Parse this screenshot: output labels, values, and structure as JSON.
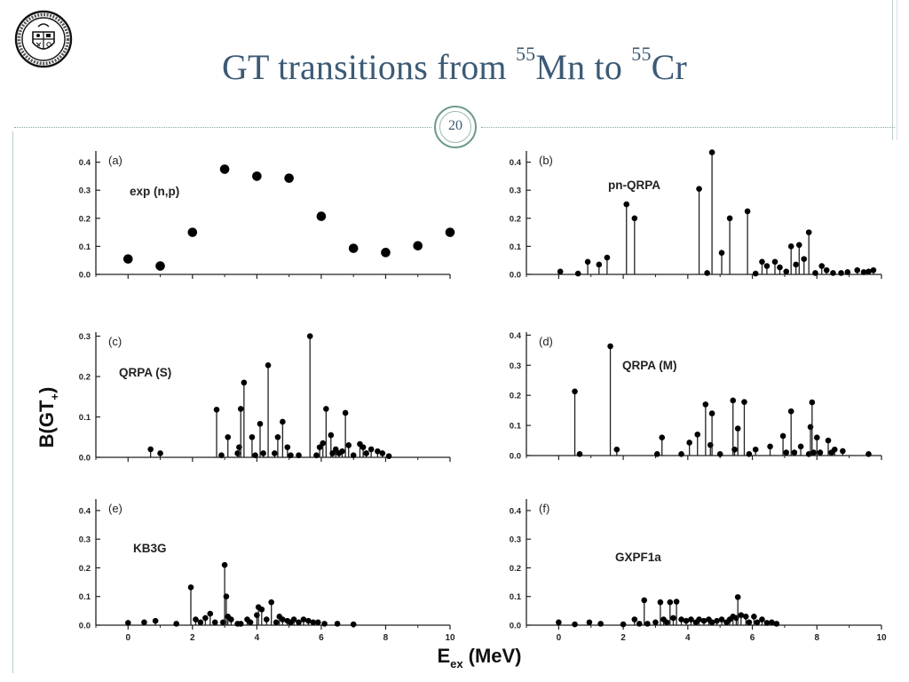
{
  "slide": {
    "title_main": "GT transitions from ",
    "title_sup1": "55",
    "title_mid": "Mn to ",
    "title_sup2": "55",
    "title_end": "Cr",
    "page_number": "20"
  },
  "colors": {
    "title": "#3c5a75",
    "frame": "#6f9a8f",
    "data": "#000000"
  },
  "y_axis_label": "B(GT",
  "y_axis_sub": "+",
  "x_axis_label": "E",
  "x_axis_sub": "ex",
  "x_axis_unit": "(MeV)",
  "chart_data": [
    {
      "type": "scatter",
      "panel": "(a)",
      "name": "exp (n,p)",
      "xlim": [
        -1,
        10
      ],
      "ylim": [
        0,
        0.44
      ],
      "xticks": [
        0,
        2,
        4,
        6,
        8,
        10
      ],
      "yticks": [
        "0.0",
        "0.1",
        "0.2",
        "0.3",
        "0.4"
      ],
      "points": [
        [
          0,
          0.055
        ],
        [
          1,
          0.03
        ],
        [
          2,
          0.15
        ],
        [
          3,
          0.375
        ],
        [
          4,
          0.35
        ],
        [
          5,
          0.343
        ],
        [
          6,
          0.207
        ],
        [
          7,
          0.093
        ],
        [
          8,
          0.078
        ],
        [
          9,
          0.102
        ],
        [
          10,
          0.15
        ]
      ]
    },
    {
      "type": "stem",
      "panel": "(b)",
      "name": "pn-QRPA",
      "xlim": [
        -1,
        10
      ],
      "ylim": [
        0,
        0.44
      ],
      "xticks": [
        0,
        2,
        4,
        6,
        8,
        10
      ],
      "yticks": [
        "0.0",
        "0.1",
        "0.2",
        "0.3",
        "0.4"
      ],
      "points": [
        [
          0.05,
          0.01
        ],
        [
          0.6,
          0.003
        ],
        [
          0.9,
          0.045
        ],
        [
          1.25,
          0.035
        ],
        [
          1.5,
          0.06
        ],
        [
          2.1,
          0.25
        ],
        [
          2.35,
          0.2
        ],
        [
          4.35,
          0.305
        ],
        [
          4.6,
          0.005
        ],
        [
          4.75,
          0.435
        ],
        [
          5.05,
          0.077
        ],
        [
          5.3,
          0.2
        ],
        [
          5.85,
          0.225
        ],
        [
          6.1,
          0.003
        ],
        [
          6.3,
          0.045
        ],
        [
          6.45,
          0.03
        ],
        [
          6.7,
          0.045
        ],
        [
          6.85,
          0.025
        ],
        [
          7.05,
          0.01
        ],
        [
          7.2,
          0.1
        ],
        [
          7.35,
          0.035
        ],
        [
          7.45,
          0.105
        ],
        [
          7.6,
          0.055
        ],
        [
          7.75,
          0.15
        ],
        [
          7.95,
          0.005
        ],
        [
          8.15,
          0.03
        ],
        [
          8.3,
          0.015
        ],
        [
          8.5,
          0.005
        ],
        [
          8.75,
          0.005
        ],
        [
          8.95,
          0.008
        ],
        [
          9.25,
          0.015
        ],
        [
          9.45,
          0.008
        ],
        [
          9.6,
          0.01
        ],
        [
          9.75,
          0.015
        ]
      ]
    },
    {
      "type": "stem",
      "panel": "(c)",
      "name": "QRPA (S)",
      "xlim": [
        -1,
        10
      ],
      "ylim": [
        0,
        0.31
      ],
      "xticks": [
        0,
        2,
        4,
        6,
        8,
        10
      ],
      "yticks": [
        "0.0",
        "0.1",
        "0.2",
        "0.3"
      ],
      "points": [
        [
          0.7,
          0.02
        ],
        [
          1.0,
          0.01
        ],
        [
          2.75,
          0.118
        ],
        [
          2.9,
          0.005
        ],
        [
          3.1,
          0.05
        ],
        [
          3.4,
          0.01
        ],
        [
          3.45,
          0.025
        ],
        [
          3.5,
          0.12
        ],
        [
          3.6,
          0.185
        ],
        [
          3.85,
          0.05
        ],
        [
          3.95,
          0.005
        ],
        [
          4.1,
          0.083
        ],
        [
          4.2,
          0.01
        ],
        [
          4.35,
          0.228
        ],
        [
          4.55,
          0.01
        ],
        [
          4.65,
          0.05
        ],
        [
          4.8,
          0.088
        ],
        [
          4.95,
          0.025
        ],
        [
          5.05,
          0.005
        ],
        [
          5.3,
          0.005
        ],
        [
          5.65,
          0.3
        ],
        [
          5.85,
          0.005
        ],
        [
          5.95,
          0.025
        ],
        [
          6.05,
          0.035
        ],
        [
          6.15,
          0.12
        ],
        [
          6.3,
          0.055
        ],
        [
          6.35,
          0.01
        ],
        [
          6.45,
          0.02
        ],
        [
          6.55,
          0.01
        ],
        [
          6.65,
          0.015
        ],
        [
          6.75,
          0.11
        ],
        [
          6.85,
          0.03
        ],
        [
          7.0,
          0.005
        ],
        [
          7.2,
          0.033
        ],
        [
          7.3,
          0.025
        ],
        [
          7.4,
          0.01
        ],
        [
          7.55,
          0.02
        ],
        [
          7.75,
          0.015
        ],
        [
          7.9,
          0.01
        ],
        [
          8.1,
          0.003
        ]
      ]
    },
    {
      "type": "stem",
      "panel": "(d)",
      "name": "QRPA (M)",
      "xlim": [
        -1,
        10
      ],
      "ylim": [
        0,
        0.41
      ],
      "xticks": [
        0,
        2,
        4,
        6,
        8,
        10
      ],
      "yticks": [
        "0.0",
        "0.1",
        "0.2",
        "0.3",
        "0.4"
      ],
      "points": [
        [
          0.5,
          0.213
        ],
        [
          0.65,
          0.005
        ],
        [
          1.6,
          0.363
        ],
        [
          1.8,
          0.02
        ],
        [
          3.05,
          0.005
        ],
        [
          3.2,
          0.06
        ],
        [
          3.8,
          0.005
        ],
        [
          4.05,
          0.043
        ],
        [
          4.3,
          0.07
        ],
        [
          4.55,
          0.17
        ],
        [
          4.7,
          0.035
        ],
        [
          4.75,
          0.14
        ],
        [
          5.0,
          0.005
        ],
        [
          5.4,
          0.183
        ],
        [
          5.45,
          0.02
        ],
        [
          5.55,
          0.09
        ],
        [
          5.75,
          0.178
        ],
        [
          5.9,
          0.005
        ],
        [
          6.1,
          0.02
        ],
        [
          6.55,
          0.03
        ],
        [
          6.95,
          0.065
        ],
        [
          7.05,
          0.01
        ],
        [
          7.2,
          0.147
        ],
        [
          7.3,
          0.01
        ],
        [
          7.5,
          0.03
        ],
        [
          7.75,
          0.005
        ],
        [
          7.8,
          0.095
        ],
        [
          7.85,
          0.177
        ],
        [
          7.9,
          0.01
        ],
        [
          8.0,
          0.06
        ],
        [
          8.1,
          0.01
        ],
        [
          8.35,
          0.05
        ],
        [
          8.45,
          0.01
        ],
        [
          8.55,
          0.02
        ],
        [
          8.8,
          0.015
        ],
        [
          9.6,
          0.005
        ]
      ]
    },
    {
      "type": "stem",
      "panel": "(e)",
      "name": "KB3G",
      "xlim": [
        -1,
        10
      ],
      "ylim": [
        0,
        0.44
      ],
      "xticks": [
        0,
        2,
        4,
        6,
        8,
        10
      ],
      "yticks": [
        "0.0",
        "0.1",
        "0.2",
        "0.3",
        "0.4"
      ],
      "points": [
        [
          0.0,
          0.008
        ],
        [
          0.5,
          0.01
        ],
        [
          0.85,
          0.015
        ],
        [
          1.5,
          0.005
        ],
        [
          1.95,
          0.132
        ],
        [
          2.1,
          0.02
        ],
        [
          2.25,
          0.01
        ],
        [
          2.4,
          0.025
        ],
        [
          2.55,
          0.04
        ],
        [
          2.7,
          0.01
        ],
        [
          2.95,
          0.01
        ],
        [
          3.0,
          0.21
        ],
        [
          3.05,
          0.1
        ],
        [
          3.1,
          0.03
        ],
        [
          3.2,
          0.02
        ],
        [
          3.4,
          0.005
        ],
        [
          3.5,
          0.005
        ],
        [
          3.7,
          0.02
        ],
        [
          3.8,
          0.01
        ],
        [
          4.0,
          0.035
        ],
        [
          4.05,
          0.063
        ],
        [
          4.15,
          0.055
        ],
        [
          4.3,
          0.02
        ],
        [
          4.45,
          0.08
        ],
        [
          4.6,
          0.01
        ],
        [
          4.7,
          0.03
        ],
        [
          4.8,
          0.02
        ],
        [
          4.95,
          0.015
        ],
        [
          5.05,
          0.01
        ],
        [
          5.15,
          0.02
        ],
        [
          5.3,
          0.01
        ],
        [
          5.45,
          0.02
        ],
        [
          5.6,
          0.015
        ],
        [
          5.75,
          0.01
        ],
        [
          5.9,
          0.01
        ],
        [
          6.1,
          0.005
        ],
        [
          6.5,
          0.005
        ],
        [
          7.0,
          0.003
        ]
      ]
    },
    {
      "type": "stem",
      "panel": "(f)",
      "name": "GXPF1a",
      "xlim": [
        -1,
        10
      ],
      "ylim": [
        0,
        0.44
      ],
      "xticks": [
        0,
        2,
        4,
        6,
        8,
        10
      ],
      "yticks": [
        "0.0",
        "0.1",
        "0.2",
        "0.3",
        "0.4"
      ],
      "points": [
        [
          0.0,
          0.01
        ],
        [
          0.5,
          0.003
        ],
        [
          0.95,
          0.01
        ],
        [
          1.3,
          0.005
        ],
        [
          2.0,
          0.003
        ],
        [
          2.35,
          0.02
        ],
        [
          2.5,
          0.005
        ],
        [
          2.65,
          0.087
        ],
        [
          2.75,
          0.005
        ],
        [
          3.0,
          0.01
        ],
        [
          3.15,
          0.08
        ],
        [
          3.25,
          0.02
        ],
        [
          3.35,
          0.01
        ],
        [
          3.45,
          0.08
        ],
        [
          3.55,
          0.025
        ],
        [
          3.65,
          0.082
        ],
        [
          3.8,
          0.02
        ],
        [
          3.95,
          0.015
        ],
        [
          4.1,
          0.02
        ],
        [
          4.25,
          0.01
        ],
        [
          4.35,
          0.02
        ],
        [
          4.5,
          0.015
        ],
        [
          4.65,
          0.02
        ],
        [
          4.75,
          0.01
        ],
        [
          4.9,
          0.015
        ],
        [
          5.05,
          0.02
        ],
        [
          5.2,
          0.01
        ],
        [
          5.3,
          0.02
        ],
        [
          5.4,
          0.03
        ],
        [
          5.5,
          0.025
        ],
        [
          5.55,
          0.098
        ],
        [
          5.65,
          0.035
        ],
        [
          5.8,
          0.03
        ],
        [
          5.9,
          0.01
        ],
        [
          6.05,
          0.03
        ],
        [
          6.15,
          0.01
        ],
        [
          6.3,
          0.02
        ],
        [
          6.45,
          0.008
        ],
        [
          6.6,
          0.01
        ],
        [
          6.75,
          0.005
        ]
      ]
    }
  ]
}
